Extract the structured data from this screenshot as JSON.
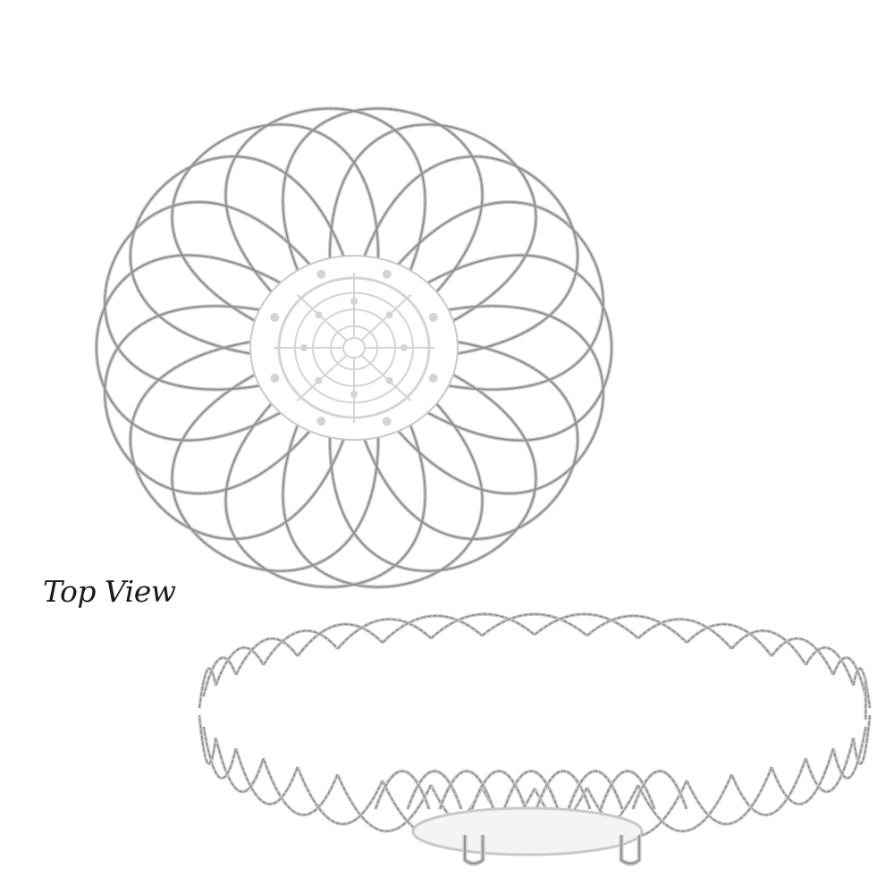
{
  "caption": {
    "text": "Top View"
  },
  "colors": {
    "background": "#ffffff",
    "wire": "#8a8a8a",
    "wire_shadow": "#c9c9c9",
    "plate_fill": "#ffffff",
    "plate_ornament": "#d4d4d4"
  },
  "images": {
    "top_view": "wire-basket-top-view",
    "side_view": "wire-basket-side-view"
  }
}
